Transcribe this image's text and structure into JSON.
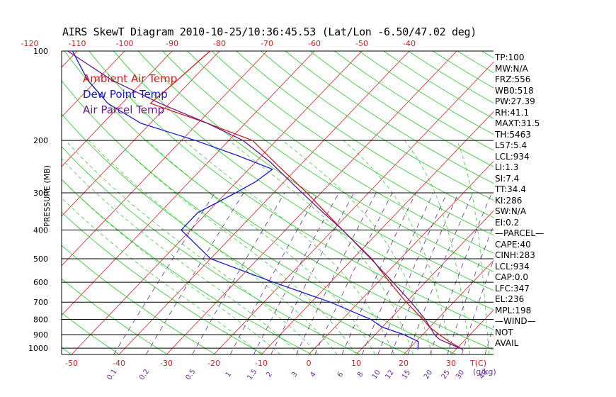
{
  "title": "AIRS SkewT Diagram 2010-10-25/10:36:45.53 (Lat/Lon -6.50/47.02 deg)",
  "legend": [
    {
      "label": "Ambient Air Temp",
      "color": "#cc2020"
    },
    {
      "label": "Dew Point Temp",
      "color": "#1a1acc"
    },
    {
      "label": "Air Parcel Temp",
      "color": "#6a1a8a"
    }
  ],
  "y_axis_label": "PRESSURE (MB)",
  "indices": [
    "TP:100",
    "MW:N/A",
    "FRZ:556",
    "WB0:518",
    "PW:27.39",
    "RH:41.1",
    "MAXT:31.5",
    "TH:5463",
    "L57:5.4",
    "LCL:934",
    "LI:1.3",
    "SI:7.4",
    "TT:34.4",
    "KI:286",
    "SW:N/A",
    "EI:0.2",
    "—PARCEL—",
    "CAPE:40",
    "CINH:283",
    "LCL:934",
    "CAP:0.0",
    "LFC:347",
    "EL:236",
    "MPL:198",
    "—WIND—",
    "NOT",
    "AVAIL"
  ],
  "chart_data": {
    "type": "line",
    "title": "AIRS SkewT Diagram 2010-10-25/10:36:45.53 (Lat/Lon -6.50/47.02 deg)",
    "ylabel": "PRESSURE (MB)",
    "y_scale": "log",
    "y_ticks": [
      100,
      200,
      300,
      400,
      500,
      600,
      700,
      800,
      900,
      1000
    ],
    "top_temp_ticks": [
      -120,
      -110,
      -100,
      -90,
      -80,
      -70,
      -60,
      -50,
      -40
    ],
    "bottom_temp_ticks": [
      -50,
      -40,
      -30,
      -20,
      -10,
      0,
      10,
      20,
      30
    ],
    "bottom_temp_unit_label": "T(C)",
    "mixing_ratio_ticks": [
      "0.1",
      "0.2",
      "0.5",
      "1",
      "1.5",
      "2",
      "3",
      "4",
      "6",
      "8",
      "10",
      "12",
      "15",
      "20",
      "25",
      "30",
      "40"
    ],
    "mixing_ratio_unit_label": "(g/kg)",
    "grid": true,
    "legend_position": "top-left",
    "series": [
      {
        "name": "Ambient Air Temp",
        "color": "#cc2020",
        "points": [
          [
            1010,
            31.5
          ],
          [
            950,
            27
          ],
          [
            900,
            23.5
          ],
          [
            850,
            20
          ],
          [
            800,
            17
          ],
          [
            700,
            10
          ],
          [
            600,
            2.5
          ],
          [
            500,
            -6
          ],
          [
            400,
            -18
          ],
          [
            300,
            -33
          ],
          [
            250,
            -43
          ],
          [
            200,
            -55
          ],
          [
            175,
            -68
          ],
          [
            150,
            -84
          ],
          [
            125,
            -83
          ],
          [
            100,
            -82
          ]
        ]
      },
      {
        "name": "Dew Point Temp",
        "color": "#1a1acc",
        "points": [
          [
            1010,
            22
          ],
          [
            950,
            20.5
          ],
          [
            900,
            16
          ],
          [
            850,
            10
          ],
          [
            800,
            6
          ],
          [
            700,
            -6
          ],
          [
            600,
            -22
          ],
          [
            500,
            -40
          ],
          [
            400,
            -52
          ],
          [
            350,
            -52
          ],
          [
            300,
            -48
          ],
          [
            275,
            -46
          ],
          [
            250,
            -45
          ],
          [
            225,
            -55
          ],
          [
            200,
            -67
          ],
          [
            175,
            -82
          ],
          [
            150,
            -93
          ],
          [
            125,
            -102
          ],
          [
            100,
            -111
          ]
        ]
      },
      {
        "name": "Air Parcel Temp",
        "color": "#6a1a8a",
        "points": [
          [
            1010,
            31.5
          ],
          [
            934,
            24.5
          ],
          [
            900,
            22.5
          ],
          [
            800,
            17.5
          ],
          [
            700,
            11
          ],
          [
            600,
            3.2
          ],
          [
            500,
            -6.2
          ],
          [
            400,
            -18
          ],
          [
            347,
            -26
          ],
          [
            300,
            -34
          ],
          [
            236,
            -47
          ],
          [
            200,
            -57
          ],
          [
            175,
            -68
          ],
          [
            150,
            -82
          ],
          [
            125,
            -97
          ],
          [
            100,
            -112
          ]
        ]
      }
    ]
  }
}
